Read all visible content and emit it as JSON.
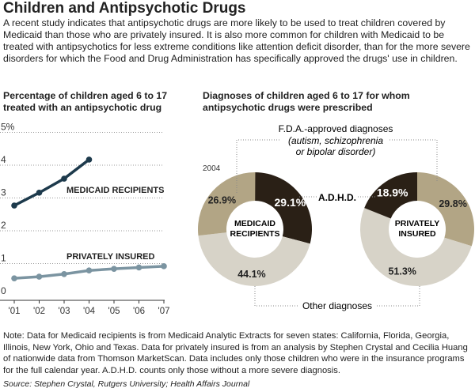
{
  "title": "Children and Antipsychotic Drugs",
  "intro": "A recent study indicates that antipsychotic drugs are more likely to be used to treat children covered by Medicaid than those who are privately insured. It is also more common for children with Medicaid to be treated with antipsychotics for less extreme conditions like attention deficit disorder, than for the more severe disorders for which the Food and Drug Administration has specifically approved the drugs' use in children.",
  "note": "Note: Data for Medicaid recipients is from Medicaid Analytic Extracts for seven states: California, Florida, Georgia, Illinois, New York, Ohio and Texas. Data for privately insured is from an analysis by Stephen Crystal and Cecilia Huang of nationwide data from Thomson MarketScan. Data includes only those children who were in the insurance programs for the full calendar year. A.D.H.D. counts only those without a more severe diagnosis.",
  "source": "Source: Stephen Crystal, Rutgers University; Health Affairs Journal",
  "chart_data": [
    {
      "type": "line",
      "title": "Percentage of children aged 6 to 17 treated with an antipsychotic drug",
      "categories": [
        "'01",
        "'02",
        "'03",
        "'04",
        "'05",
        "'06",
        "'07"
      ],
      "yticks": [
        "0",
        "1",
        "2",
        "3",
        "4",
        "5%"
      ],
      "ylim": [
        0,
        5
      ],
      "grid": true,
      "series": [
        {
          "name": "MEDICAID RECIPIENTS",
          "color": "#1d3a4c",
          "values": [
            2.77,
            3.16,
            3.59,
            4.17,
            null,
            null,
            null
          ]
        },
        {
          "name": "PRIVATELY INSURED",
          "color": "#7b94a1",
          "values": [
            0.55,
            0.6,
            0.68,
            0.79,
            0.84,
            0.88,
            0.92
          ]
        }
      ]
    },
    {
      "type": "pie",
      "title": "Diagnoses of children aged 6 to 17 for whom antipsychotic drugs were prescribed",
      "year": "2004",
      "labels": {
        "fda": "F.D.A.-approved diagnoses",
        "fda_detail1": "(autism, schizophrenia",
        "fda_detail2": "or bipolar disorder)",
        "adhd": "A.D.H.D.",
        "other": "Other diagnoses"
      },
      "colors": {
        "adhd": "#2a2016",
        "other": "#d7d3c8",
        "fda": "#b2a585"
      },
      "donuts": [
        {
          "name1": "MEDICAID",
          "name2": "RECIPIENTS",
          "slices": [
            {
              "key": "adhd",
              "value": 29.1,
              "label": "29.1%"
            },
            {
              "key": "other",
              "value": 44.1,
              "label": "44.1%"
            },
            {
              "key": "fda",
              "value": 26.9,
              "label": "26.9%"
            }
          ]
        },
        {
          "name1": "PRIVATELY",
          "name2": "INSURED",
          "slices": [
            {
              "key": "fda",
              "value": 29.8,
              "label": "29.8%"
            },
            {
              "key": "other",
              "value": 51.3,
              "label": "51.3%"
            },
            {
              "key": "adhd",
              "value": 18.9,
              "label": "18.9%"
            }
          ]
        }
      ]
    }
  ]
}
